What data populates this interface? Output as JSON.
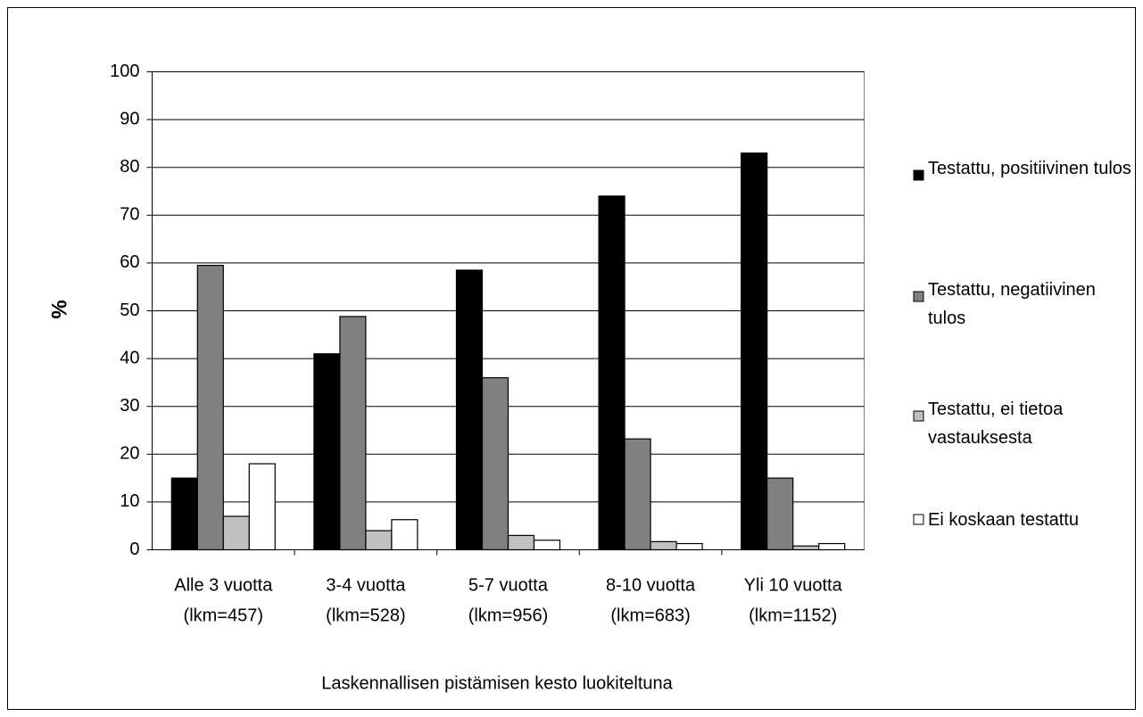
{
  "chart_data": {
    "type": "bar",
    "x_label": "Laskennallisen pistämisen kesto luokiteltuna",
    "y_label": "%",
    "categories": [
      [
        "Alle 3 vuotta",
        "(lkm=457)"
      ],
      [
        "3-4 vuotta",
        "(lkm=528)"
      ],
      [
        "5-7 vuotta",
        "(lkm=956)"
      ],
      [
        "8-10 vuotta",
        "(lkm=683)"
      ],
      [
        "Yli 10 vuotta",
        "(lkm=1152)"
      ]
    ],
    "series": [
      {
        "name": "Testattu, positiivinen tulos",
        "color": "#000000",
        "values": [
          15,
          41,
          58.5,
          74,
          83
        ]
      },
      {
        "name": "Testattu, negatiivinen tulos",
        "color": "#808080",
        "values": [
          59.5,
          48.8,
          36,
          23.2,
          15
        ]
      },
      {
        "name": "Testattu, ei tietoa vastauksesta",
        "color": "#c0c0c0",
        "values": [
          7,
          4,
          3,
          1.7,
          0.8
        ]
      },
      {
        "name": "Ei koskaan testattu",
        "color": "#ffffff",
        "values": [
          18,
          6.3,
          2,
          1.3,
          1.3
        ]
      }
    ],
    "ylim": [
      0,
      100
    ],
    "yticks": [
      0,
      10,
      20,
      30,
      40,
      50,
      60,
      70,
      80,
      90,
      100
    ],
    "grid": true,
    "legend": "right"
  }
}
